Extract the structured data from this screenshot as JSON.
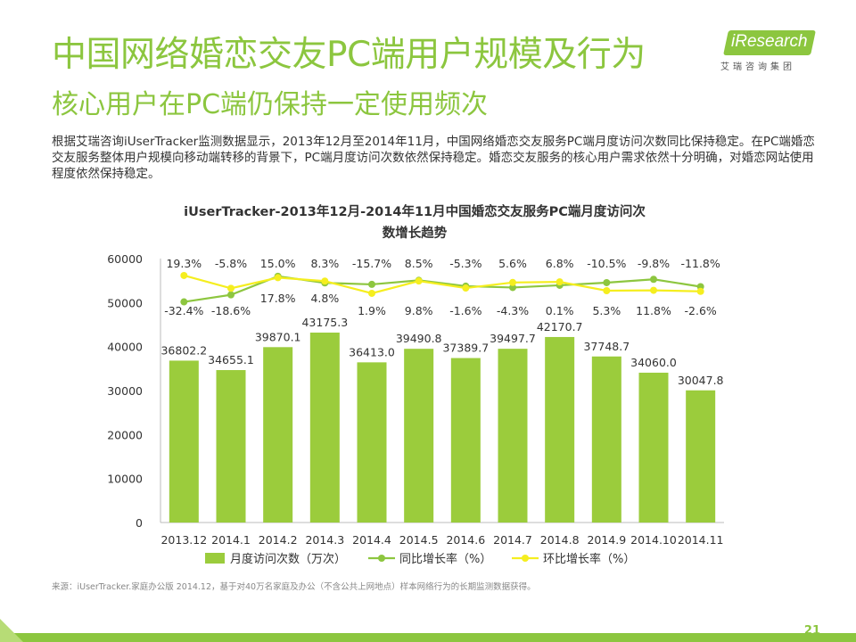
{
  "header": {
    "title": "中国网络婚恋交友PC端用户规模及行为",
    "subtitle": "核心用户在PC端仍保持一定使用频次"
  },
  "logo": {
    "brand": "iResearch",
    "tagline": "艾瑞咨询集团"
  },
  "description": "根据艾瑞咨询iUserTracker监测数据显示，2013年12月至2014年11月，中国网络婚恋交友服务PC端月度访问次数同比保持稳定。在PC端婚恋交友服务整体用户规模向移动端转移的背景下，PC端月度访问次数依然保持稳定。婚恋交友服务的核心用户需求依然十分明确，对婚恋网站使用程度依然保持稳定。",
  "footer": {
    "source": "来源：iUserTracker.家庭办公版 2014.12，基于对40万名家庭及办公（不含公共上网地点）样本网络行为的长期监测数据获得。",
    "page": "21"
  },
  "colors": {
    "accent": "#8cc63f",
    "bar": "#9bcc3c",
    "yoy": "#8dc63f",
    "mom": "#f5ee1f"
  },
  "chart_data": {
    "type": "bar",
    "title_line1": "iUserTracker-2013年12月-2014年11月中国婚恋交友服务PC端月度访问次",
    "title_line2": "数增长趋势",
    "categories": [
      "2013.12",
      "2014.1",
      "2014.2",
      "2014.3",
      "2014.4",
      "2014.5",
      "2014.6",
      "2014.7",
      "2014.8",
      "2014.9",
      "2014.10",
      "2014.11"
    ],
    "ylim": [
      0,
      60000
    ],
    "yticks": [
      0,
      10000,
      20000,
      30000,
      40000,
      50000,
      60000
    ],
    "series": [
      {
        "name": "月度访问次数（万次）",
        "type": "bar",
        "values": [
          36802.2,
          34655.1,
          39870.1,
          43175.3,
          36413.0,
          39490.8,
          37389.7,
          39497.7,
          42170.7,
          37748.7,
          34060.0,
          30047.8
        ],
        "labels": [
          "36802.2",
          "34655.1",
          "39870.1",
          "43175.3",
          "36413.0",
          "39490.8",
          "37389.7",
          "39497.7",
          "42170.7",
          "37748.7",
          "34060.0",
          "30047.8"
        ]
      },
      {
        "name": "同比增长率（%）",
        "type": "line",
        "values": [
          -32.4,
          -18.6,
          17.8,
          4.8,
          1.9,
          9.8,
          -1.6,
          -4.3,
          0.1,
          5.3,
          11.8,
          -2.6
        ],
        "labels": [
          "-32.4%",
          "-18.6%",
          "17.8%",
          "4.8%",
          "1.9%",
          "9.8%",
          "-1.6%",
          "-4.3%",
          "0.1%",
          "5.3%",
          "11.8%",
          "-2.6%"
        ]
      },
      {
        "name": "环比增长率（%）",
        "type": "line",
        "values": [
          19.3,
          -5.8,
          15.0,
          8.3,
          -15.7,
          8.5,
          -5.3,
          5.6,
          6.8,
          -10.5,
          -9.8,
          -11.8
        ],
        "labels": [
          "19.3%",
          "-5.8%",
          "15.0%",
          "8.3%",
          "-15.7%",
          "8.5%",
          "-5.3%",
          "5.6%",
          "6.8%",
          "-10.5%",
          "-9.8%",
          "-11.8%"
        ]
      }
    ],
    "legend_position": "bottom"
  }
}
